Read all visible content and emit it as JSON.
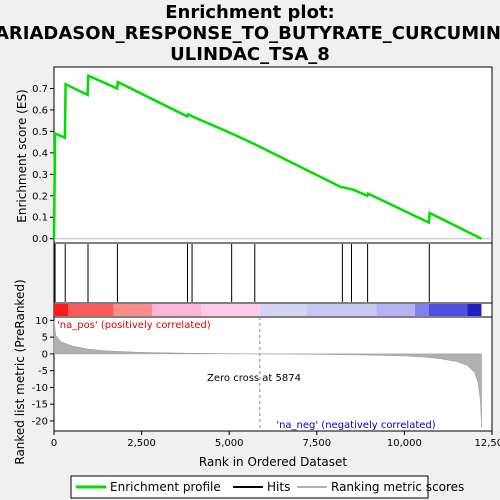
{
  "title_lines": [
    "Enrichment plot:",
    "MARIADASON_RESPONSE_TO_BUTYRATE_CURCUMIN_S",
    "ULINDAC_TSA_8"
  ],
  "colors": {
    "es_line": "#00dd00",
    "hits": "#000000",
    "metric_fill": "#b0b0b0",
    "pos_label": "#dd0000",
    "neg_label": "#0000cc",
    "zero_line": "#888888"
  },
  "chart_data": {
    "type": "line",
    "x_range": [
      0,
      12500
    ],
    "total_genes": 12200,
    "es_panel": {
      "ylabel": "Enrichment score (ES)",
      "ylim": [
        -0.02,
        0.8
      ],
      "yticks": [
        "0.0",
        "0.1",
        "0.2",
        "0.3",
        "0.4",
        "0.5",
        "0.6",
        "0.7"
      ],
      "points": [
        [
          0,
          0.0
        ],
        [
          30,
          0.49
        ],
        [
          310,
          0.47
        ],
        [
          330,
          0.72
        ],
        [
          960,
          0.67
        ],
        [
          980,
          0.76
        ],
        [
          1800,
          0.7
        ],
        [
          1820,
          0.73
        ],
        [
          3800,
          0.57
        ],
        [
          3830,
          0.58
        ],
        [
          3940,
          0.57
        ],
        [
          5070,
          0.49
        ],
        [
          5730,
          0.44
        ],
        [
          8200,
          0.24
        ],
        [
          8250,
          0.24
        ],
        [
          8480,
          0.23
        ],
        [
          8510,
          0.23
        ],
        [
          8940,
          0.2
        ],
        [
          8960,
          0.21
        ],
        [
          10700,
          0.075
        ],
        [
          10720,
          0.12
        ],
        [
          12200,
          0.0
        ]
      ]
    },
    "hits": [
      30,
      320,
      970,
      1810,
      3810,
      3940,
      5070,
      5730,
      8230,
      8490,
      8950,
      10710
    ],
    "metric_panel": {
      "ylabel": "Ranked list metric (PreRanked)",
      "ylim": [
        -23,
        11
      ],
      "yticks": [
        "10",
        "5",
        "0",
        "-5",
        "-10",
        "-15",
        "-20"
      ],
      "profile": [
        [
          0,
          10
        ],
        [
          50,
          5.5
        ],
        [
          200,
          3.6
        ],
        [
          500,
          2.4
        ],
        [
          1000,
          1.4
        ],
        [
          1500,
          0.9
        ],
        [
          2500,
          0.45
        ],
        [
          3500,
          0.25
        ],
        [
          4500,
          0.12
        ],
        [
          5874,
          0
        ],
        [
          7000,
          -0.1
        ],
        [
          8000,
          -0.2
        ],
        [
          9000,
          -0.35
        ],
        [
          10000,
          -0.6
        ],
        [
          10500,
          -0.9
        ],
        [
          11000,
          -1.4
        ],
        [
          11500,
          -2.3
        ],
        [
          11800,
          -3.5
        ],
        [
          12000,
          -5.5
        ],
        [
          12100,
          -8.5
        ],
        [
          12170,
          -14
        ],
        [
          12200,
          -22
        ]
      ]
    },
    "zero_cross": 5874,
    "zero_cross_label": "Zero cross at 5874",
    "pos_label": "'na_pos' (positively correlated)",
    "neg_label": "'na_neg' (negatively correlated)",
    "xlabel": "Rank in Ordered Dataset",
    "xticks": [
      "0",
      "2,500",
      "5,000",
      "7,500",
      "10,000",
      "12,500"
    ],
    "colorbar_segments": [
      {
        "from": 0,
        "to": 400,
        "color": "#ff1a1a"
      },
      {
        "from": 400,
        "to": 1700,
        "color": "#ff5a5a"
      },
      {
        "from": 1700,
        "to": 2800,
        "color": "#ff8c8c"
      },
      {
        "from": 2800,
        "to": 4200,
        "color": "#ffb4d8"
      },
      {
        "from": 4200,
        "to": 5874,
        "color": "#ffc8e6"
      },
      {
        "from": 5874,
        "to": 7200,
        "color": "#d4d4f4"
      },
      {
        "from": 7200,
        "to": 9200,
        "color": "#c8c8f4"
      },
      {
        "from": 9200,
        "to": 10300,
        "color": "#b4b4f4"
      },
      {
        "from": 10300,
        "to": 10700,
        "color": "#8080ee"
      },
      {
        "from": 10700,
        "to": 11800,
        "color": "#5050e0"
      },
      {
        "from": 11800,
        "to": 12200,
        "color": "#2020c0"
      }
    ]
  },
  "legend": {
    "items": [
      {
        "label": "Enrichment profile",
        "kind": "es"
      },
      {
        "label": "Hits",
        "kind": "hit"
      },
      {
        "label": "Ranking metric scores",
        "kind": "metric"
      }
    ]
  }
}
